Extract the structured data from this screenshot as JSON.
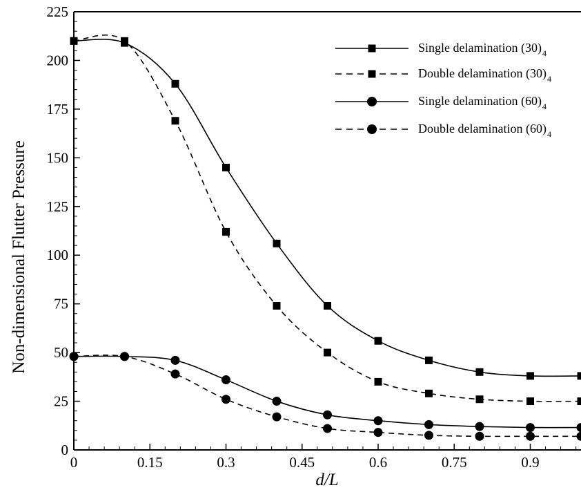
{
  "chart_data": {
    "type": "line",
    "xlabel": "d/L",
    "ylabel": "Non-dimensional Flutter Pressure",
    "xlim": [
      0,
      1.0
    ],
    "ylim": [
      0,
      225
    ],
    "xticks": [
      0,
      0.15,
      0.3,
      0.45,
      0.6,
      0.75,
      0.9
    ],
    "xtick_labels": [
      "0",
      "0.15",
      "0.3",
      "0.45",
      "0.6",
      "0.75",
      "0.9"
    ],
    "yticks": [
      0,
      25,
      50,
      75,
      100,
      125,
      150,
      175,
      200,
      225
    ],
    "ytick_labels": [
      "0",
      "25",
      "50",
      "75",
      "100",
      "125",
      "150",
      "175",
      "200",
      "225"
    ],
    "grid": false,
    "legend_position": "top-right",
    "series": [
      {
        "name": "Single delamination (30)",
        "name_subscript": "4",
        "line": "solid",
        "marker": "square",
        "x": [
          0,
          0.1,
          0.2,
          0.3,
          0.4,
          0.5,
          0.6,
          0.7,
          0.8,
          0.9,
          1.0
        ],
        "y": [
          210,
          209,
          188,
          145,
          106,
          74,
          56,
          46,
          40,
          38,
          38
        ]
      },
      {
        "name": "Double delamination (30)",
        "name_subscript": "4",
        "line": "dashed",
        "marker": "square",
        "x": [
          0,
          0.1,
          0.2,
          0.3,
          0.4,
          0.5,
          0.6,
          0.7,
          0.8,
          0.9,
          1.0
        ],
        "y": [
          210,
          210,
          169,
          112,
          74,
          50,
          35,
          29,
          26,
          25,
          25
        ]
      },
      {
        "name": "Single delamination (60)",
        "name_subscript": "4",
        "line": "solid",
        "marker": "circle",
        "x": [
          0,
          0.1,
          0.2,
          0.3,
          0.4,
          0.5,
          0.6,
          0.7,
          0.8,
          0.9,
          1.0
        ],
        "y": [
          48,
          48,
          46,
          36,
          25,
          18,
          15,
          13,
          12,
          11.5,
          11.5
        ]
      },
      {
        "name": "Double delamination (60)",
        "name_subscript": "4",
        "line": "dashed",
        "marker": "circle",
        "x": [
          0,
          0.1,
          0.2,
          0.3,
          0.4,
          0.5,
          0.6,
          0.7,
          0.8,
          0.9,
          1.0
        ],
        "y": [
          48,
          48,
          39,
          26,
          17,
          11,
          9,
          7.5,
          7,
          7,
          7
        ]
      }
    ]
  }
}
